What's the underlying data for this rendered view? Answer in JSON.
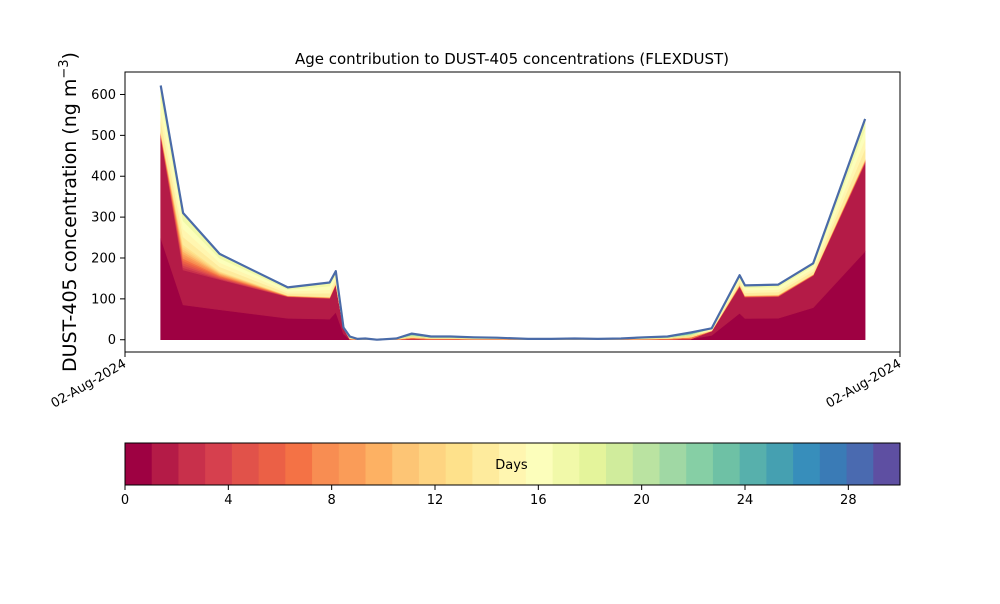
{
  "chart_data": [
    {
      "type": "area",
      "title": "Age contribution to DUST-405 concentrations (FLEXDUST)",
      "ylabel_main": "DUST-405 concentration (ng m",
      "ylabel_sup": "−3",
      "ylabel_close": ")",
      "xlabel": "",
      "x_tick_labels": [
        "02-Aug-2024",
        "02-Aug-2024"
      ],
      "yticks": [
        0,
        100,
        200,
        300,
        400,
        500,
        600
      ],
      "ylim": [
        -30,
        655
      ],
      "xlim": [
        0,
        1
      ],
      "x": [
        0.046,
        0.075,
        0.122,
        0.21,
        0.264,
        0.272,
        0.282,
        0.29,
        0.3,
        0.31,
        0.325,
        0.35,
        0.37,
        0.395,
        0.42,
        0.45,
        0.48,
        0.52,
        0.55,
        0.58,
        0.61,
        0.64,
        0.67,
        0.7,
        0.73,
        0.757,
        0.793,
        0.8,
        0.843,
        0.888,
        0.955
      ],
      "total": [
        622,
        310,
        210,
        128,
        140,
        168,
        30,
        8,
        2,
        3,
        0,
        3,
        15,
        8,
        8,
        6,
        5,
        2,
        2,
        3,
        2,
        3,
        6,
        8,
        18,
        28,
        158,
        133,
        135,
        187,
        540
      ],
      "age_fractions": [
        [
          0.8,
          0.55,
          0.7,
          0.82,
          0.72,
          0.8,
          0.95,
          1,
          1,
          1,
          1,
          1,
          1,
          1,
          1,
          1,
          1,
          1,
          1,
          1,
          1,
          1,
          1,
          1,
          1,
          0.75,
          0.82,
          0.78,
          0.78,
          0.84,
          0.8
        ],
        [
          0.02,
          0.2,
          0.1,
          0.03,
          0.03,
          0.03,
          0.02,
          0,
          0,
          0,
          0,
          0,
          0,
          0,
          0,
          0,
          0,
          0,
          0,
          0,
          0,
          0,
          0,
          0,
          0,
          0.05,
          0.04,
          0.04,
          0.04,
          0.02,
          0.02
        ],
        [
          0.18,
          0.25,
          0.2,
          0.15,
          0.25,
          0.17,
          0.03,
          0,
          0,
          0,
          0,
          0,
          0,
          0,
          0,
          0,
          0,
          0,
          0,
          0,
          0,
          0,
          0,
          0,
          0,
          0.2,
          0.14,
          0.18,
          0.18,
          0.14,
          0.18
        ]
      ],
      "series": [
        {
          "name": "",
          "role": "age-layers"
        },
        {
          "name": "",
          "role": "total-line"
        }
      ],
      "colors": {
        "total_line": "#4a6ba8"
      },
      "grid": false
    },
    {
      "type": "colorbar",
      "label": "Days",
      "range": [
        0,
        30
      ],
      "ticks": [
        0,
        4,
        8,
        12,
        16,
        20,
        24,
        28
      ],
      "colors": [
        "#9e0142",
        "#b41b47",
        "#c8304b",
        "#d6404e",
        "#e1524a",
        "#eb6046",
        "#f47245",
        "#f88d52",
        "#fa9c58",
        "#fdb163",
        "#fdc575",
        "#fed481",
        "#fee18b",
        "#feeb9d",
        "#fff6b0",
        "#fcfebb",
        "#f1f9a9",
        "#e4f49b",
        "#d0ec9c",
        "#bae3a1",
        "#a0d8a4",
        "#86cfa5",
        "#6ec1a5",
        "#57b0ac",
        "#45a0b1",
        "#378ebb",
        "#3a7bb6",
        "#4a6ab0",
        "#5e4fa2"
      ]
    }
  ]
}
